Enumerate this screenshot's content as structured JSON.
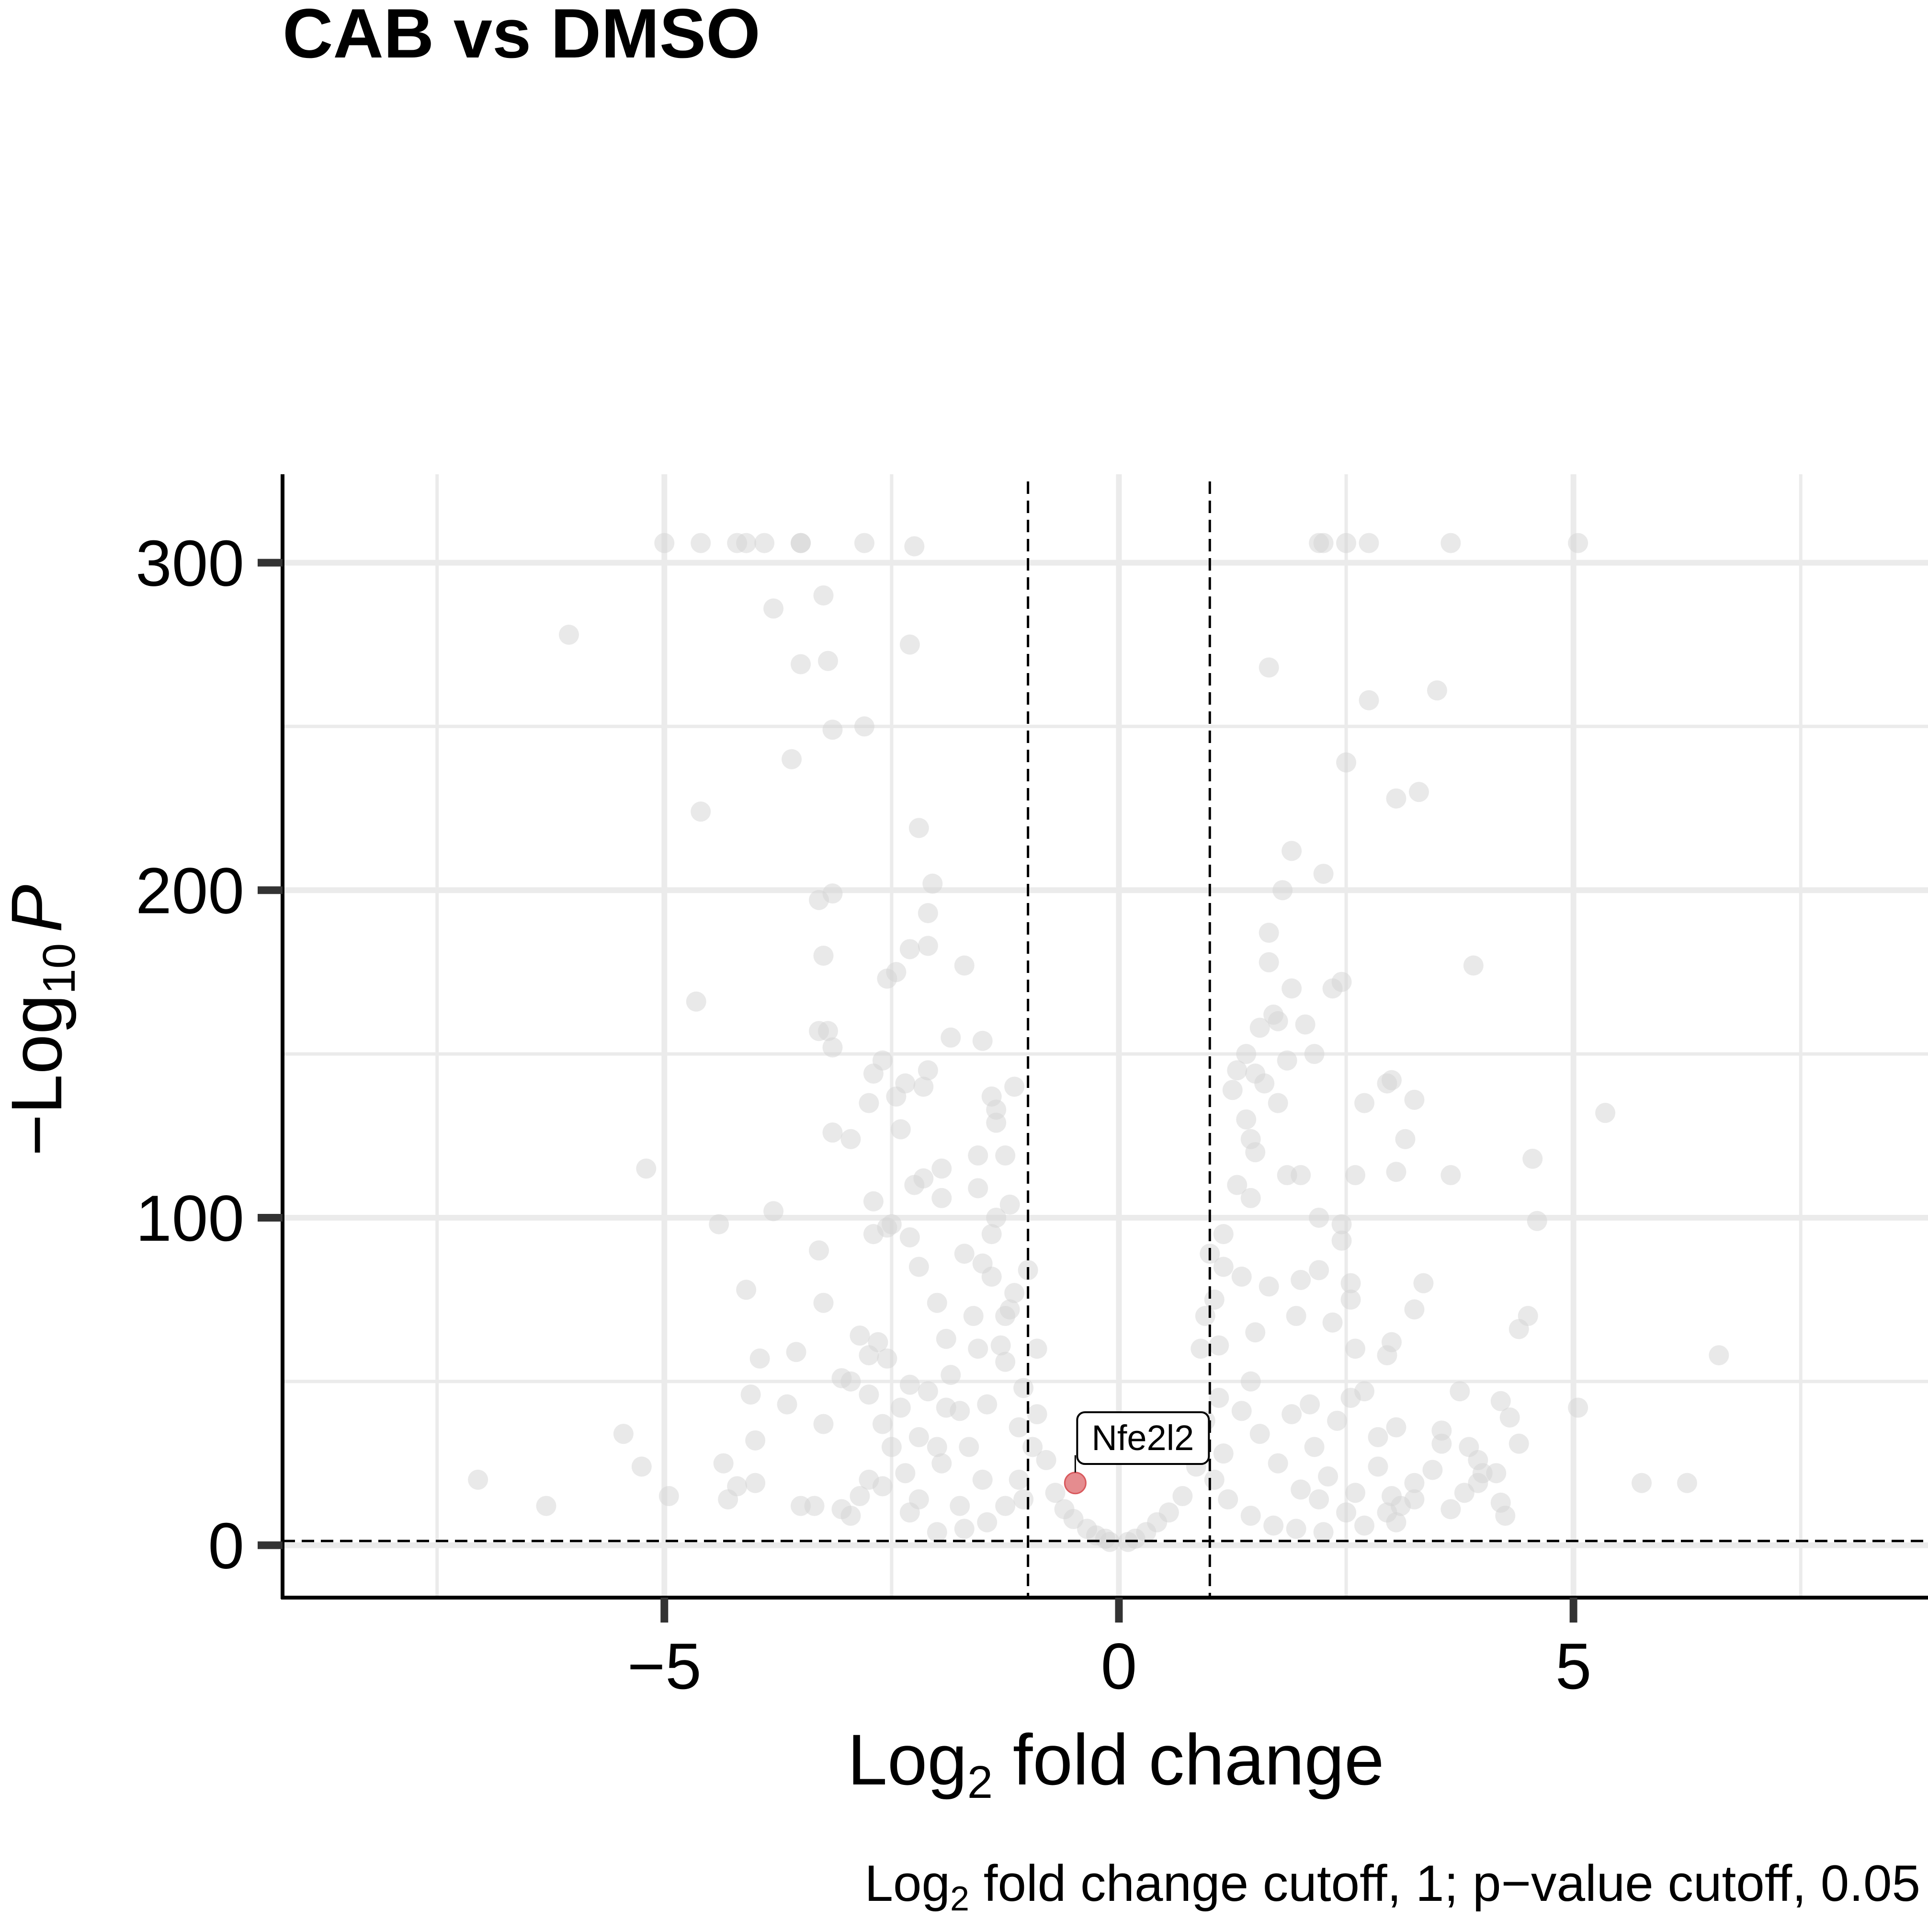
{
  "chart_data": {
    "type": "scatter",
    "title": "CAB vs DMSO",
    "xlabel": {
      "base": "Log",
      "sub": "2",
      "rest": " fold change"
    },
    "ylabel": {
      "prefix": "−Log",
      "sub": "10",
      "italic": "P"
    },
    "caption": {
      "base": "Log",
      "sub": "2",
      "rest": " fold change cutoff, 1; p−value cutoff, 0.05"
    },
    "xlim": [
      -9.2,
      8.9
    ],
    "ylim": [
      -16,
      327
    ],
    "x_ticks": [
      {
        "value": -5,
        "label": "−5"
      },
      {
        "value": 0,
        "label": "0"
      },
      {
        "value": 5,
        "label": "5"
      }
    ],
    "y_ticks": [
      {
        "value": 0,
        "label": "0"
      },
      {
        "value": 100,
        "label": "100"
      },
      {
        "value": 200,
        "label": "200"
      },
      {
        "value": 300,
        "label": "300"
      }
    ],
    "x_minor_grid": [
      -7.5,
      -2.5,
      2.5,
      7.5
    ],
    "y_minor_grid": [
      50,
      150,
      250
    ],
    "grid": true,
    "legend": "none",
    "cutoffs": {
      "log2fc": 1,
      "pvalue": 0.05,
      "neg_log10_p_line": 1.3
    },
    "colors": {
      "ns": "#d3d3d3",
      "highlight": "#e0787b",
      "grid": "#ebebeb",
      "cutoff_line": "#000000"
    },
    "highlight": {
      "gene": "Nfe2l2",
      "x": -0.48,
      "y": 19
    },
    "points": [
      [
        -5.0,
        306
      ],
      [
        -4.6,
        306
      ],
      [
        -4.2,
        306
      ],
      [
        -4.1,
        306
      ],
      [
        -3.9,
        306
      ],
      [
        -3.5,
        306
      ],
      [
        -3.5,
        306
      ],
      [
        -2.8,
        306
      ],
      [
        -2.25,
        305
      ],
      [
        2.2,
        306
      ],
      [
        2.25,
        306
      ],
      [
        2.5,
        306
      ],
      [
        2.75,
        306
      ],
      [
        3.65,
        306
      ],
      [
        5.05,
        306
      ],
      [
        -6.05,
        278
      ],
      [
        -3.8,
        286
      ],
      [
        -3.25,
        290
      ],
      [
        -2.3,
        275
      ],
      [
        -3.5,
        269
      ],
      [
        -3.2,
        270
      ],
      [
        -3.15,
        249
      ],
      [
        -2.8,
        250
      ],
      [
        -3.6,
        240
      ],
      [
        -4.6,
        224
      ],
      [
        -2.2,
        219
      ],
      [
        -2.05,
        202
      ],
      [
        -3.15,
        199
      ],
      [
        -3.3,
        197
      ],
      [
        -2.1,
        193
      ],
      [
        -2.3,
        182
      ],
      [
        -2.1,
        183
      ],
      [
        -1.7,
        177
      ],
      [
        -3.25,
        180
      ],
      [
        -2.55,
        173
      ],
      [
        -2.45,
        175
      ],
      [
        -4.65,
        166
      ],
      [
        -3.3,
        157
      ],
      [
        -3.2,
        157
      ],
      [
        -3.15,
        152
      ],
      [
        -1.5,
        154
      ],
      [
        -1.85,
        155
      ],
      [
        -2.6,
        148
      ],
      [
        -2.1,
        145
      ],
      [
        -2.7,
        144
      ],
      [
        -2.15,
        140
      ],
      [
        -2.35,
        141
      ],
      [
        -2.45,
        137
      ],
      [
        -2.75,
        135
      ],
      [
        -1.15,
        140
      ],
      [
        -1.4,
        137
      ],
      [
        -1.35,
        133
      ],
      [
        -1.35,
        129
      ],
      [
        -3.15,
        126
      ],
      [
        -2.95,
        124
      ],
      [
        -2.4,
        127
      ],
      [
        -1.55,
        119
      ],
      [
        -1.25,
        119
      ],
      [
        -2.15,
        112
      ],
      [
        -1.95,
        115
      ],
      [
        -2.25,
        110
      ],
      [
        -1.55,
        109
      ],
      [
        -1.95,
        106
      ],
      [
        -2.7,
        105
      ],
      [
        -5.2,
        115
      ],
      [
        -3.8,
        102
      ],
      [
        -2.5,
        98
      ],
      [
        -2.55,
        97
      ],
      [
        -2.7,
        95
      ],
      [
        -1.35,
        100
      ],
      [
        -2.3,
        94
      ],
      [
        -4.4,
        98
      ],
      [
        -3.3,
        90
      ],
      [
        -2.2,
        85
      ],
      [
        -1.7,
        89
      ],
      [
        -1.5,
        86
      ],
      [
        -1.4,
        82
      ],
      [
        -4.1,
        78
      ],
      [
        -3.25,
        74
      ],
      [
        -2.0,
        74
      ],
      [
        -1.25,
        70
      ],
      [
        -1.15,
        77
      ],
      [
        -2.85,
        64
      ],
      [
        -2.65,
        62
      ],
      [
        -1.9,
        63
      ],
      [
        -3.55,
        59
      ],
      [
        -3.05,
        51
      ],
      [
        -2.95,
        50
      ],
      [
        -2.75,
        58
      ],
      [
        -2.55,
        57
      ],
      [
        -3.95,
        57
      ],
      [
        -4.05,
        46
      ],
      [
        -2.75,
        46
      ],
      [
        -2.3,
        49
      ],
      [
        -2.1,
        47
      ],
      [
        -1.55,
        60
      ],
      [
        -1.25,
        56
      ],
      [
        -3.65,
        43
      ],
      [
        -2.4,
        42
      ],
      [
        -1.9,
        42
      ],
      [
        -1.75,
        41
      ],
      [
        -3.25,
        37
      ],
      [
        -4.0,
        32
      ],
      [
        -2.6,
        37
      ],
      [
        -2.2,
        33
      ],
      [
        -2.5,
        30
      ],
      [
        -5.45,
        34
      ],
      [
        -4.35,
        25
      ],
      [
        -5.25,
        24
      ],
      [
        -7.05,
        20
      ],
      [
        -4.2,
        18
      ],
      [
        -4.0,
        19
      ],
      [
        -4.3,
        14
      ],
      [
        -4.95,
        15
      ],
      [
        -6.3,
        12
      ],
      [
        -3.5,
        12
      ],
      [
        -3.35,
        12
      ],
      [
        -3.05,
        11
      ],
      [
        -2.95,
        9
      ],
      [
        -2.85,
        15
      ],
      [
        -2.75,
        20
      ],
      [
        -2.6,
        18
      ],
      [
        -2.35,
        22
      ],
      [
        -2.2,
        14
      ],
      [
        -1.95,
        25
      ],
      [
        -1.75,
        12
      ],
      [
        -1.65,
        30
      ],
      [
        -1.5,
        20
      ],
      [
        -1.45,
        43
      ],
      [
        -1.3,
        61
      ],
      [
        -1.2,
        72
      ],
      [
        -1.1,
        36
      ],
      [
        -1.05,
        14
      ],
      [
        -2.3,
        10
      ],
      [
        -2.0,
        30
      ],
      [
        -1.85,
        52
      ],
      [
        -1.6,
        70
      ],
      [
        -1.4,
        95
      ],
      [
        -1.2,
        104
      ],
      [
        -1.0,
        84
      ],
      [
        -0.9,
        40
      ],
      [
        -0.8,
        26
      ],
      [
        -0.7,
        16
      ],
      [
        -0.6,
        11
      ],
      [
        -0.5,
        8
      ],
      [
        -0.35,
        5
      ],
      [
        -0.25,
        3
      ],
      [
        -0.15,
        2
      ],
      [
        -0.1,
        1
      ],
      [
        0.1,
        1
      ],
      [
        0.18,
        2
      ],
      [
        0.3,
        4
      ],
      [
        0.42,
        7
      ],
      [
        0.55,
        10
      ],
      [
        0.7,
        15
      ],
      [
        0.85,
        24
      ],
      [
        0.95,
        38
      ],
      [
        1.0,
        89
      ],
      [
        1.1,
        61
      ],
      [
        1.1,
        45
      ],
      [
        1.25,
        139
      ],
      [
        1.3,
        145
      ],
      [
        1.4,
        130
      ],
      [
        1.45,
        124
      ],
      [
        1.5,
        120
      ],
      [
        1.3,
        110
      ],
      [
        1.45,
        106
      ],
      [
        1.15,
        85
      ],
      [
        1.35,
        82
      ],
      [
        1.5,
        65
      ],
      [
        1.45,
        50
      ],
      [
        1.65,
        268
      ],
      [
        1.75,
        160
      ],
      [
        1.8,
        200
      ],
      [
        1.9,
        212
      ],
      [
        1.9,
        170
      ],
      [
        1.85,
        148
      ],
      [
        1.75,
        135
      ],
      [
        1.65,
        178
      ],
      [
        1.65,
        187
      ],
      [
        1.7,
        162
      ],
      [
        1.5,
        144
      ],
      [
        1.55,
        158
      ],
      [
        1.6,
        141
      ],
      [
        1.4,
        150
      ],
      [
        2.05,
        159
      ],
      [
        2.15,
        150
      ],
      [
        2.25,
        205
      ],
      [
        2.35,
        170
      ],
      [
        2.45,
        172
      ],
      [
        2.5,
        239
      ],
      [
        2.75,
        258
      ],
      [
        3.05,
        228
      ],
      [
        3.3,
        230
      ],
      [
        3.5,
        261
      ],
      [
        3.9,
        177
      ],
      [
        2.95,
        141
      ],
      [
        3.0,
        142
      ],
      [
        2.7,
        135
      ],
      [
        3.25,
        136
      ],
      [
        3.15,
        124
      ],
      [
        3.05,
        114
      ],
      [
        3.65,
        113
      ],
      [
        5.35,
        132
      ],
      [
        4.55,
        118
      ],
      [
        4.6,
        99
      ],
      [
        2.6,
        113
      ],
      [
        2.45,
        98
      ],
      [
        2.45,
        93
      ],
      [
        2.2,
        100
      ],
      [
        2.0,
        113
      ],
      [
        1.85,
        113
      ],
      [
        2.55,
        80
      ],
      [
        2.2,
        84
      ],
      [
        2.0,
        81
      ],
      [
        1.65,
        79
      ],
      [
        1.95,
        70
      ],
      [
        2.35,
        68
      ],
      [
        2.55,
        75
      ],
      [
        2.6,
        60
      ],
      [
        3.0,
        62
      ],
      [
        3.35,
        80
      ],
      [
        3.25,
        72
      ],
      [
        2.55,
        45
      ],
      [
        2.95,
        58
      ],
      [
        2.4,
        38
      ],
      [
        2.1,
        43
      ],
      [
        1.9,
        40
      ],
      [
        3.75,
        47
      ],
      [
        4.5,
        70
      ],
      [
        4.4,
        66
      ],
      [
        4.2,
        44
      ],
      [
        4.3,
        39
      ],
      [
        4.4,
        31
      ],
      [
        3.55,
        35
      ],
      [
        3.55,
        31
      ],
      [
        3.45,
        23
      ],
      [
        3.95,
        26
      ],
      [
        4.0,
        22
      ],
      [
        3.85,
        30
      ],
      [
        3.95,
        19
      ],
      [
        4.15,
        22
      ],
      [
        3.8,
        16
      ],
      [
        3.65,
        11
      ],
      [
        4.2,
        13
      ],
      [
        4.25,
        9
      ],
      [
        3.25,
        19
      ],
      [
        3.25,
        14
      ],
      [
        3.1,
        12
      ],
      [
        3.05,
        36
      ],
      [
        2.85,
        33
      ],
      [
        2.7,
        47
      ],
      [
        2.3,
        21
      ],
      [
        2.15,
        30
      ],
      [
        2.6,
        16
      ],
      [
        2.85,
        24
      ],
      [
        3.0,
        15
      ],
      [
        3.05,
        7
      ],
      [
        2.95,
        10
      ],
      [
        5.05,
        42
      ],
      [
        6.6,
        58
      ],
      [
        5.75,
        19
      ],
      [
        6.25,
        19
      ],
      [
        2.7,
        6
      ],
      [
        2.5,
        10
      ],
      [
        2.2,
        14
      ],
      [
        2.0,
        17
      ],
      [
        1.75,
        25
      ],
      [
        1.55,
        34
      ],
      [
        1.35,
        41
      ],
      [
        1.15,
        28
      ],
      [
        1.05,
        20
      ],
      [
        1.2,
        14
      ],
      [
        1.45,
        9
      ],
      [
        1.7,
        6
      ],
      [
        1.95,
        5
      ],
      [
        2.25,
        4
      ],
      [
        -1.1,
        20
      ],
      [
        -1.25,
        12
      ],
      [
        -1.45,
        7
      ],
      [
        -1.7,
        5
      ],
      [
        -2.0,
        4
      ],
      [
        -0.95,
        30
      ],
      [
        -1.05,
        48
      ],
      [
        -0.9,
        60
      ],
      [
        0.9,
        60
      ],
      [
        0.95,
        70
      ],
      [
        1.05,
        75
      ],
      [
        1.15,
        95
      ]
    ]
  }
}
